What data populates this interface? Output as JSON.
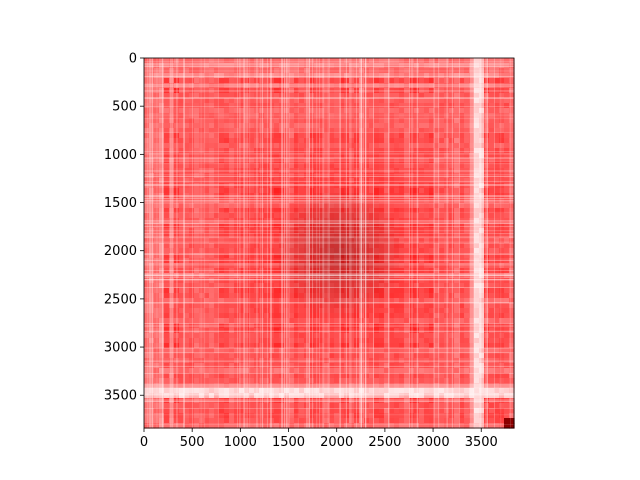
{
  "chart_data": {
    "type": "heatmap",
    "title": "",
    "xlabel": "",
    "ylabel": "",
    "matrix_size": 3840,
    "xlim": [
      0,
      3840
    ],
    "ylim": [
      3840,
      0
    ],
    "x_ticks": [
      0,
      500,
      1000,
      1500,
      2000,
      2500,
      3000,
      3500
    ],
    "y_ticks": [
      0,
      500,
      1000,
      1500,
      2000,
      2500,
      3000,
      3500
    ],
    "x_tick_labels": [
      "0",
      "500",
      "1000",
      "1500",
      "2000",
      "2500",
      "3000",
      "3500"
    ],
    "y_tick_labels": [
      "0",
      "500",
      "1000",
      "1500",
      "2000",
      "2500",
      "3000",
      "3500"
    ],
    "colormap": "white-to-red",
    "colors": {
      "low": "#ffffff",
      "mid": "#ff0000",
      "high": "#8b0000"
    },
    "features": {
      "dense_red_center": [
        1500,
        2500
      ],
      "pale_band_x": [
        3380,
        3500
      ],
      "pale_band_y": [
        3380,
        3500
      ],
      "dark_corner_block": [
        3700,
        3840
      ]
    },
    "grid": false,
    "legend": "none"
  }
}
